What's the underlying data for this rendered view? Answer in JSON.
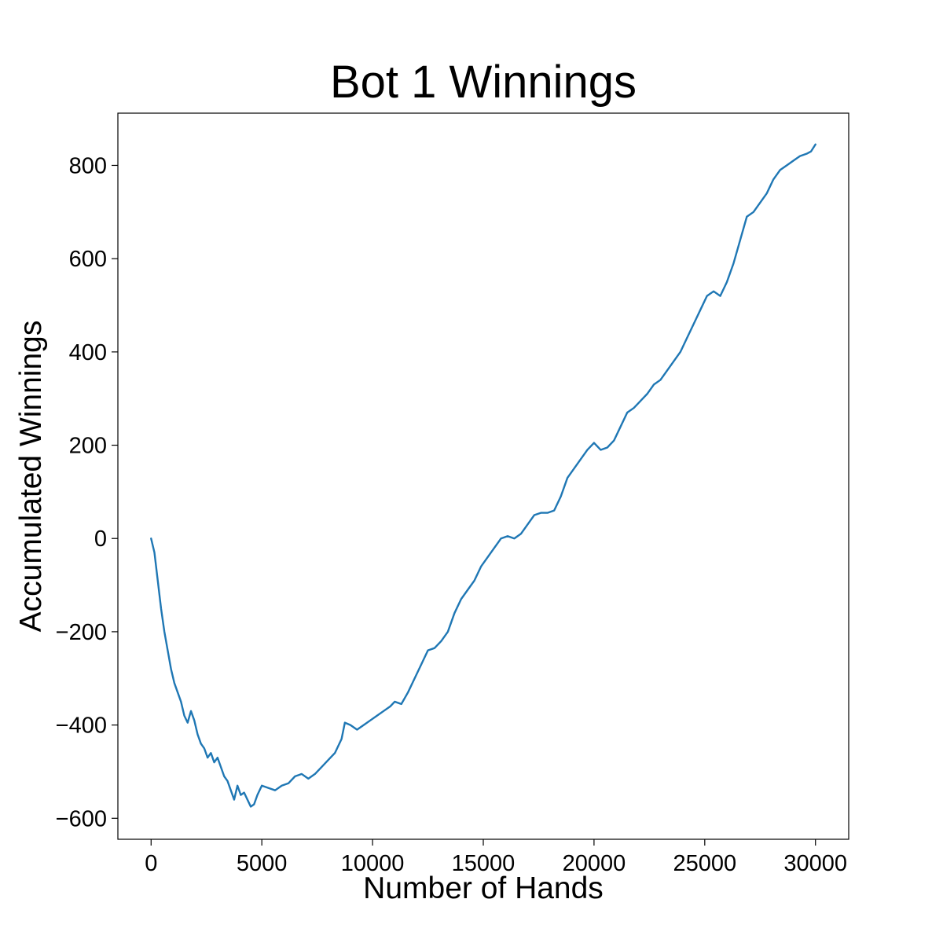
{
  "chart_data": {
    "type": "line",
    "title": "Bot 1 Winnings",
    "xlabel": "Number of Hands",
    "ylabel": "Accumulated Winnings",
    "xlim": [
      -1500,
      31500
    ],
    "ylim": [
      -645,
      912
    ],
    "xticks": [
      0,
      5000,
      10000,
      15000,
      20000,
      25000,
      30000
    ],
    "xtick_labels": [
      "0",
      "5000",
      "10000",
      "15000",
      "20000",
      "25000",
      "30000"
    ],
    "yticks": [
      -600,
      -400,
      -200,
      0,
      200,
      400,
      600,
      800
    ],
    "ytick_labels": [
      "−600",
      "−400",
      "−200",
      "0",
      "200",
      "400",
      "600",
      "800"
    ],
    "grid": false,
    "series": [
      {
        "color": "#1f77b4",
        "x": [
          0,
          150,
          300,
          450,
          600,
          750,
          900,
          1050,
          1200,
          1350,
          1500,
          1650,
          1800,
          1950,
          2100,
          2250,
          2400,
          2550,
          2700,
          2850,
          3000,
          3150,
          3300,
          3450,
          3600,
          3750,
          3900,
          4050,
          4200,
          4350,
          4500,
          4650,
          4800,
          5000,
          5300,
          5600,
          5900,
          6200,
          6500,
          6800,
          7100,
          7400,
          7700,
          8000,
          8300,
          8600,
          8750,
          9000,
          9300,
          9600,
          9900,
          10200,
          10500,
          10800,
          11000,
          11300,
          11600,
          11900,
          12200,
          12500,
          12800,
          13100,
          13400,
          13700,
          14000,
          14300,
          14600,
          14900,
          15200,
          15500,
          15800,
          16100,
          16400,
          16700,
          17000,
          17300,
          17600,
          17900,
          18200,
          18500,
          18800,
          19100,
          19400,
          19700,
          20000,
          20300,
          20600,
          20900,
          21200,
          21500,
          21800,
          22100,
          22400,
          22700,
          23000,
          23300,
          23600,
          23900,
          24200,
          24500,
          24800,
          25100,
          25400,
          25700,
          26000,
          26300,
          26600,
          26900,
          27200,
          27500,
          27800,
          28100,
          28400,
          28700,
          29000,
          29300,
          29600,
          29800,
          30000
        ],
        "values": [
          0,
          -30,
          -90,
          -150,
          -200,
          -240,
          -280,
          -310,
          -330,
          -350,
          -380,
          -395,
          -370,
          -390,
          -420,
          -440,
          -450,
          -470,
          -460,
          -480,
          -470,
          -490,
          -510,
          -520,
          -540,
          -560,
          -530,
          -550,
          -545,
          -560,
          -575,
          -570,
          -550,
          -530,
          -535,
          -540,
          -530,
          -525,
          -510,
          -505,
          -515,
          -505,
          -490,
          -475,
          -460,
          -430,
          -395,
          -400,
          -410,
          -400,
          -390,
          -380,
          -370,
          -360,
          -350,
          -355,
          -330,
          -300,
          -270,
          -240,
          -235,
          -220,
          -200,
          -160,
          -130,
          -110,
          -90,
          -60,
          -40,
          -20,
          0,
          5,
          0,
          10,
          30,
          50,
          55,
          55,
          60,
          90,
          130,
          150,
          170,
          190,
          205,
          190,
          195,
          210,
          240,
          270,
          280,
          295,
          310,
          330,
          340,
          360,
          380,
          400,
          430,
          460,
          490,
          520,
          530,
          520,
          550,
          590,
          640,
          690,
          700,
          720,
          740,
          770,
          790,
          800,
          810,
          820,
          825,
          830,
          845
        ]
      }
    ]
  }
}
